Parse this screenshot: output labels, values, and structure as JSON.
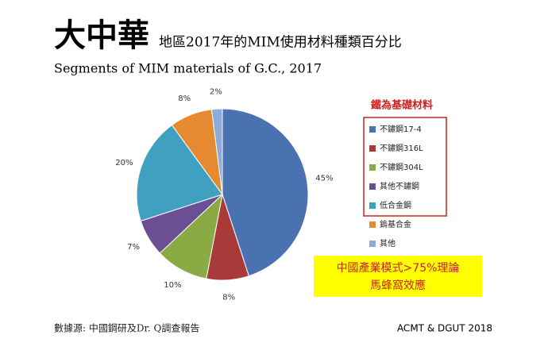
{
  "chart_data": {
    "type": "pie",
    "title": "大中華",
    "title_detail": "地區2017年的MIM使用材料種類百分比",
    "subtitle": "Segments of MIM materials of  G.C., 2017",
    "legend_heading": "鐵為基礎材料",
    "categories": [
      "不鏽鋼17-4",
      "不鏽鋼316L",
      "不鏽鋼304L",
      "其他不鏽鋼",
      "低合金鋼",
      "鎢基合金",
      "其他"
    ],
    "values": [
      45,
      8,
      10,
      7,
      20,
      8,
      2
    ],
    "value_labels": [
      "45%",
      "8%",
      "10%",
      "7%",
      "20%",
      "8%",
      "2%"
    ],
    "colors": [
      "#4a72b0",
      "#a83a3a",
      "#8aab44",
      "#6a4f94",
      "#3fa0bf",
      "#e58a30",
      "#8eaad8"
    ],
    "annotations": [
      "中國產業模式>75%理論",
      "馬蜂窩效應"
    ],
    "source": "數據源: 中國鋼研及Dr. Q調查報告",
    "credit": "ACMT & DGUT 2018"
  }
}
